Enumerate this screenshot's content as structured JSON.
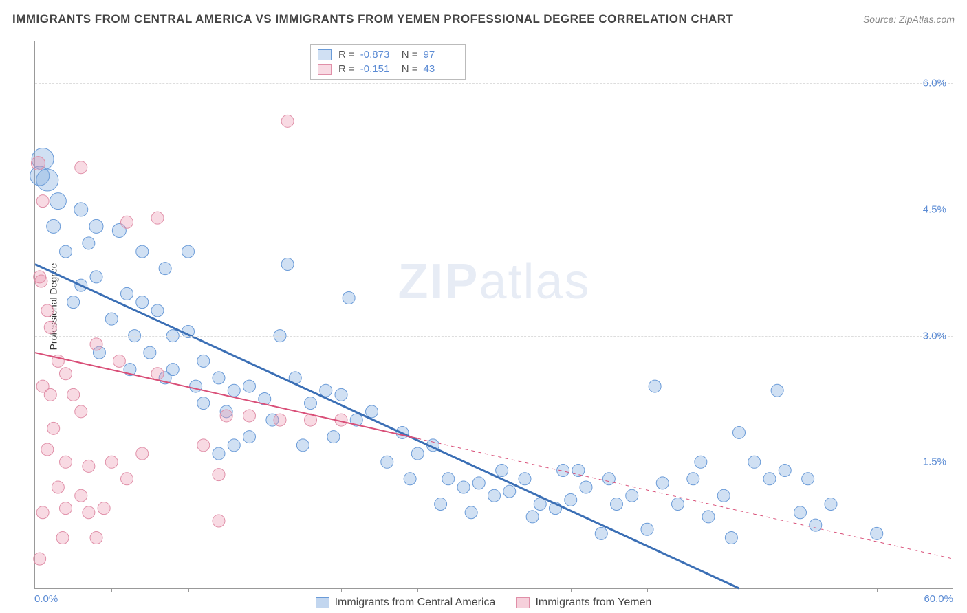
{
  "title": "IMMIGRANTS FROM CENTRAL AMERICA VS IMMIGRANTS FROM YEMEN PROFESSIONAL DEGREE CORRELATION CHART",
  "source": "Source: ZipAtlas.com",
  "y_axis_label": "Professional Degree",
  "watermark_a": "ZIP",
  "watermark_b": "atlas",
  "chart": {
    "type": "scatter",
    "xlim": [
      0,
      60
    ],
    "ylim": [
      0,
      6.5
    ],
    "x_min_label": "0.0%",
    "x_max_label": "60.0%",
    "y_ticks": [
      1.5,
      3.0,
      4.5,
      6.0
    ],
    "y_tick_labels": [
      "1.5%",
      "3.0%",
      "4.5%",
      "6.0%"
    ],
    "x_ticks": [
      5,
      10,
      15,
      20,
      25,
      30,
      35,
      40,
      45,
      50,
      55
    ],
    "background_color": "#ffffff",
    "grid_color": "#dddddd",
    "axis_color": "#999999",
    "tick_label_color": "#5b8bd4",
    "series": [
      {
        "name": "Immigrants from Central America",
        "color_fill": "rgba(120,165,220,0.35)",
        "color_stroke": "#6a9bd8",
        "trend_color": "#3b6fb5",
        "trend_width": 3,
        "trend_dash": "none",
        "trend": {
          "x1": 0,
          "y1": 3.85,
          "x2": 46,
          "y2": 0
        },
        "R": "-0.873",
        "N": "97",
        "marker_r_base": 9,
        "points": [
          [
            0.5,
            5.1,
            16
          ],
          [
            0.3,
            4.9,
            14
          ],
          [
            0.8,
            4.85,
            16
          ],
          [
            1.5,
            4.6,
            12
          ],
          [
            1.2,
            4.3,
            10
          ],
          [
            3,
            4.5,
            10
          ],
          [
            4,
            4.3,
            10
          ],
          [
            5.5,
            4.25,
            10
          ],
          [
            3,
            3.6,
            9
          ],
          [
            4,
            3.7,
            9
          ],
          [
            2.5,
            3.4,
            9
          ],
          [
            6,
            3.5,
            9
          ],
          [
            7,
            3.4,
            9
          ],
          [
            5,
            3.2,
            9
          ],
          [
            8,
            3.3,
            9
          ],
          [
            6.5,
            3.0,
            9
          ],
          [
            7.5,
            2.8,
            9
          ],
          [
            9,
            3.0,
            9
          ],
          [
            10,
            3.05,
            9
          ],
          [
            9,
            2.6,
            9
          ],
          [
            11,
            2.7,
            9
          ],
          [
            12,
            2.5,
            9
          ],
          [
            10.5,
            2.4,
            9
          ],
          [
            13,
            2.35,
            9
          ],
          [
            14,
            2.4,
            9
          ],
          [
            11,
            2.2,
            9
          ],
          [
            12.5,
            2.1,
            9
          ],
          [
            15,
            2.25,
            9
          ],
          [
            16,
            3.0,
            9
          ],
          [
            16.5,
            3.85,
            9
          ],
          [
            17,
            2.5,
            9
          ],
          [
            18,
            2.2,
            9
          ],
          [
            19,
            2.35,
            9
          ],
          [
            20,
            2.3,
            9
          ],
          [
            20.5,
            3.45,
            9
          ],
          [
            21,
            2.0,
            9
          ],
          [
            22,
            2.1,
            9
          ],
          [
            14,
            1.8,
            9
          ],
          [
            13,
            1.7,
            9
          ],
          [
            12,
            1.6,
            9
          ],
          [
            24,
            1.85,
            9
          ],
          [
            25,
            1.6,
            9
          ],
          [
            26,
            1.7,
            9
          ],
          [
            27,
            1.3,
            9
          ],
          [
            28,
            1.2,
            9
          ],
          [
            29,
            1.25,
            9
          ],
          [
            30,
            1.1,
            9
          ],
          [
            31,
            1.15,
            9
          ],
          [
            32,
            1.3,
            9
          ],
          [
            33,
            1.0,
            9
          ],
          [
            34,
            0.95,
            9
          ],
          [
            35,
            1.05,
            9
          ],
          [
            36,
            1.2,
            9
          ],
          [
            37,
            0.65,
            9
          ],
          [
            38,
            1.0,
            9
          ],
          [
            39,
            1.1,
            9
          ],
          [
            40,
            0.7,
            9
          ],
          [
            41,
            1.25,
            9
          ],
          [
            42,
            1.0,
            9
          ],
          [
            43,
            1.3,
            9
          ],
          [
            44,
            0.85,
            9
          ],
          [
            45,
            1.1,
            9
          ],
          [
            46,
            1.85,
            9
          ],
          [
            47,
            1.5,
            9
          ],
          [
            48,
            1.3,
            9
          ],
          [
            49,
            1.4,
            9
          ],
          [
            48.5,
            2.35,
            9
          ],
          [
            40.5,
            2.4,
            9
          ],
          [
            50,
            0.9,
            9
          ],
          [
            51,
            0.75,
            9
          ],
          [
            52,
            1.0,
            9
          ],
          [
            55,
            0.65,
            9
          ],
          [
            23,
            1.5,
            9
          ],
          [
            24.5,
            1.3,
            9
          ],
          [
            26.5,
            1.0,
            9
          ],
          [
            28.5,
            0.9,
            9
          ],
          [
            30.5,
            1.4,
            9
          ],
          [
            32.5,
            0.85,
            9
          ],
          [
            34.5,
            1.4,
            9
          ],
          [
            19.5,
            1.8,
            9
          ],
          [
            17.5,
            1.7,
            9
          ],
          [
            15.5,
            2.0,
            9
          ],
          [
            8.5,
            2.5,
            9
          ],
          [
            10,
            4.0,
            9
          ],
          [
            4.2,
            2.8,
            9
          ],
          [
            6.2,
            2.6,
            9
          ],
          [
            2,
            4.0,
            9
          ],
          [
            3.5,
            4.1,
            9
          ],
          [
            7,
            4.0,
            9
          ],
          [
            8.5,
            3.8,
            9
          ],
          [
            35.5,
            1.4,
            9
          ],
          [
            37.5,
            1.3,
            9
          ],
          [
            43.5,
            1.5,
            9
          ],
          [
            45.5,
            0.6,
            9
          ],
          [
            50.5,
            1.3,
            9
          ]
        ]
      },
      {
        "name": "Immigrants from Yemen",
        "color_fill": "rgba(235,150,175,0.35)",
        "color_stroke": "#e08fa8",
        "trend_color": "#d94f78",
        "trend_width": 2,
        "trend_dash": "solid_then_dash",
        "trend_solid_end_x": 25,
        "trend": {
          "x1": 0,
          "y1": 2.8,
          "x2": 60,
          "y2": 0.35
        },
        "R": "-0.151",
        "N": "43",
        "marker_r_base": 9,
        "points": [
          [
            0.2,
            5.05,
            10
          ],
          [
            0.5,
            4.6,
            9
          ],
          [
            0.3,
            3.7,
            9
          ],
          [
            0.4,
            3.65,
            9
          ],
          [
            0.8,
            3.3,
            9
          ],
          [
            1,
            3.1,
            9
          ],
          [
            3,
            5.0,
            9
          ],
          [
            6,
            4.35,
            9
          ],
          [
            8,
            4.4,
            9
          ],
          [
            1.5,
            2.7,
            9
          ],
          [
            2,
            2.55,
            9
          ],
          [
            0.5,
            2.4,
            9
          ],
          [
            1,
            2.3,
            9
          ],
          [
            2.5,
            2.3,
            9
          ],
          [
            3,
            2.1,
            9
          ],
          [
            1.2,
            1.9,
            9
          ],
          [
            0.8,
            1.65,
            9
          ],
          [
            2,
            1.5,
            9
          ],
          [
            3.5,
            1.45,
            9
          ],
          [
            1.5,
            1.2,
            9
          ],
          [
            3,
            1.1,
            9
          ],
          [
            0.5,
            0.9,
            9
          ],
          [
            2,
            0.95,
            9
          ],
          [
            3.5,
            0.9,
            9
          ],
          [
            4.5,
            0.95,
            9
          ],
          [
            1.8,
            0.6,
            9
          ],
          [
            4,
            0.6,
            9
          ],
          [
            0.3,
            0.35,
            9
          ],
          [
            5,
            1.5,
            9
          ],
          [
            6,
            1.3,
            9
          ],
          [
            7,
            1.6,
            9
          ],
          [
            11,
            1.7,
            9
          ],
          [
            12,
            1.35,
            9
          ],
          [
            12.5,
            2.05,
            9
          ],
          [
            14,
            2.05,
            9
          ],
          [
            16,
            2.0,
            9
          ],
          [
            18,
            2.0,
            9
          ],
          [
            20,
            2.0,
            9
          ],
          [
            16.5,
            5.55,
            9
          ],
          [
            12,
            0.8,
            9
          ],
          [
            8,
            2.55,
            9
          ],
          [
            5.5,
            2.7,
            9
          ],
          [
            4,
            2.9,
            9
          ]
        ]
      }
    ]
  },
  "legend_top_labels": {
    "R": "R =",
    "N": "N ="
  },
  "legend_bottom": [
    {
      "label": "Immigrants from Central America",
      "fill": "rgba(120,165,220,0.45)",
      "stroke": "#6a9bd8"
    },
    {
      "label": "Immigrants from Yemen",
      "fill": "rgba(235,150,175,0.45)",
      "stroke": "#e08fa8"
    }
  ]
}
